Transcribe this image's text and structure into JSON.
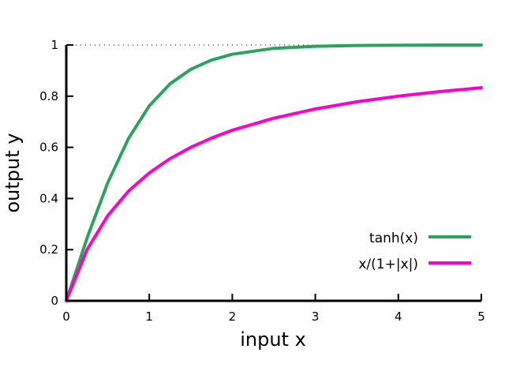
{
  "chart_data": {
    "type": "line",
    "title": "",
    "xlabel": "input  x",
    "ylabel": "output  y",
    "xlim": [
      0,
      5
    ],
    "ylim": [
      0,
      1
    ],
    "x_ticks": [
      "0",
      "1",
      "2",
      "3",
      "4",
      "5"
    ],
    "y_ticks": [
      "0",
      "0.2",
      "0.4",
      "0.6",
      "0.8",
      "1"
    ],
    "reference_line": {
      "y": 1,
      "style": "dotted"
    },
    "legend_position": "bottom-right",
    "grid": false,
    "series": [
      {
        "name": "tanh(x)",
        "color": "#2ca25f",
        "x": [
          0,
          0.25,
          0.5,
          0.75,
          1.0,
          1.25,
          1.5,
          1.75,
          2.0,
          2.5,
          3.0,
          3.5,
          4.0,
          4.5,
          5.0
        ],
        "y": [
          0,
          0.245,
          0.462,
          0.635,
          0.762,
          0.848,
          0.905,
          0.941,
          0.964,
          0.987,
          0.995,
          0.998,
          0.999,
          1.0,
          1.0
        ]
      },
      {
        "name": "x/(1+|x|)",
        "color": "#ff00cc",
        "x": [
          0,
          0.25,
          0.5,
          0.75,
          1.0,
          1.25,
          1.5,
          1.75,
          2.0,
          2.5,
          3.0,
          3.5,
          4.0,
          4.5,
          5.0
        ],
        "y": [
          0,
          0.2,
          0.333,
          0.429,
          0.5,
          0.556,
          0.6,
          0.636,
          0.667,
          0.714,
          0.75,
          0.778,
          0.8,
          0.818,
          0.833
        ]
      }
    ]
  }
}
